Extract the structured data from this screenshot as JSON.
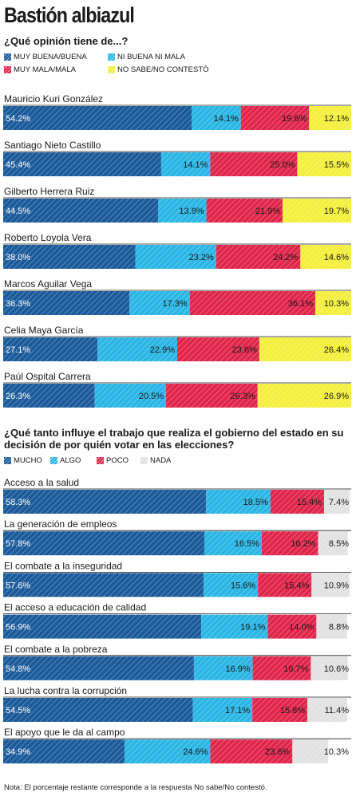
{
  "header": {
    "title": "Bastión albiazul"
  },
  "chart_data": [
    {
      "type": "bar",
      "stacked": true,
      "orientation": "horizontal",
      "title": "¿Qué opinión tiene de...?",
      "categories": [
        "Mauricio Kuri González",
        "Santiago Nieto Castillo",
        "Gilberto Herrera Ruiz",
        "Roberto Loyola Vera",
        "Marcos Aguilar Vega",
        "Celia Maya García",
        "Paúl Ospital Carrera"
      ],
      "series": [
        {
          "name": "MUY BUENA/BUENA",
          "color": "#1a5a9a",
          "pattern": "hatch",
          "values": [
            54.2,
            45.4,
            44.5,
            38.0,
            36.3,
            27.1,
            26.3
          ]
        },
        {
          "name": "NI BUENA NI MALA",
          "color": "#29b6e5",
          "pattern": "hatch",
          "values": [
            14.1,
            14.1,
            13.9,
            23.2,
            17.3,
            22.9,
            20.5
          ]
        },
        {
          "name": "MUY MALA/MALA",
          "color": "#e0254a",
          "pattern": "hatch",
          "values": [
            19.6,
            25.0,
            21.9,
            24.2,
            36.1,
            23.6,
            26.3
          ]
        },
        {
          "name": "NO SABE/NO CONTESTÓ",
          "color": "#f4ef3c",
          "pattern": "hatch",
          "values": [
            12.1,
            15.5,
            19.7,
            14.6,
            10.3,
            26.4,
            26.9
          ]
        }
      ],
      "value_suffix": "%"
    },
    {
      "type": "bar",
      "stacked": true,
      "orientation": "horizontal",
      "title": "¿Qué tanto influye el trabajo que realiza el gobierno del estado en su decisión de por quién votar en las elecciones?",
      "categories": [
        "Acceso a la salud",
        "La generación de empleos",
        "El combate a la inseguridad",
        "El acceso a educación de calidad",
        "El combate a la pobreza",
        "La lucha contra la corrupción",
        "El apoyo que le da al campo"
      ],
      "series": [
        {
          "name": "MUCHO",
          "color": "#1a5a9a",
          "pattern": "hatch",
          "values": [
            58.3,
            57.8,
            57.6,
            56.9,
            54.8,
            54.5,
            34.9
          ]
        },
        {
          "name": "ALGO",
          "color": "#29b6e5",
          "pattern": "hatch",
          "values": [
            18.5,
            16.5,
            15.6,
            19.1,
            16.9,
            17.1,
            24.6
          ]
        },
        {
          "name": "POCO",
          "color": "#e0254a",
          "pattern": "hatch",
          "values": [
            15.4,
            16.2,
            15.4,
            14.0,
            16.7,
            15.8,
            23.6
          ]
        },
        {
          "name": "NADA",
          "color": "#e2e2e2",
          "pattern": "hatch",
          "values": [
            7.4,
            8.5,
            10.9,
            8.8,
            10.6,
            11.4,
            10.3
          ]
        }
      ],
      "value_suffix": "%"
    }
  ],
  "footer": {
    "note": "Nota: El porcentaje restante corresponde a la respuesta No sabe/No contestó."
  }
}
